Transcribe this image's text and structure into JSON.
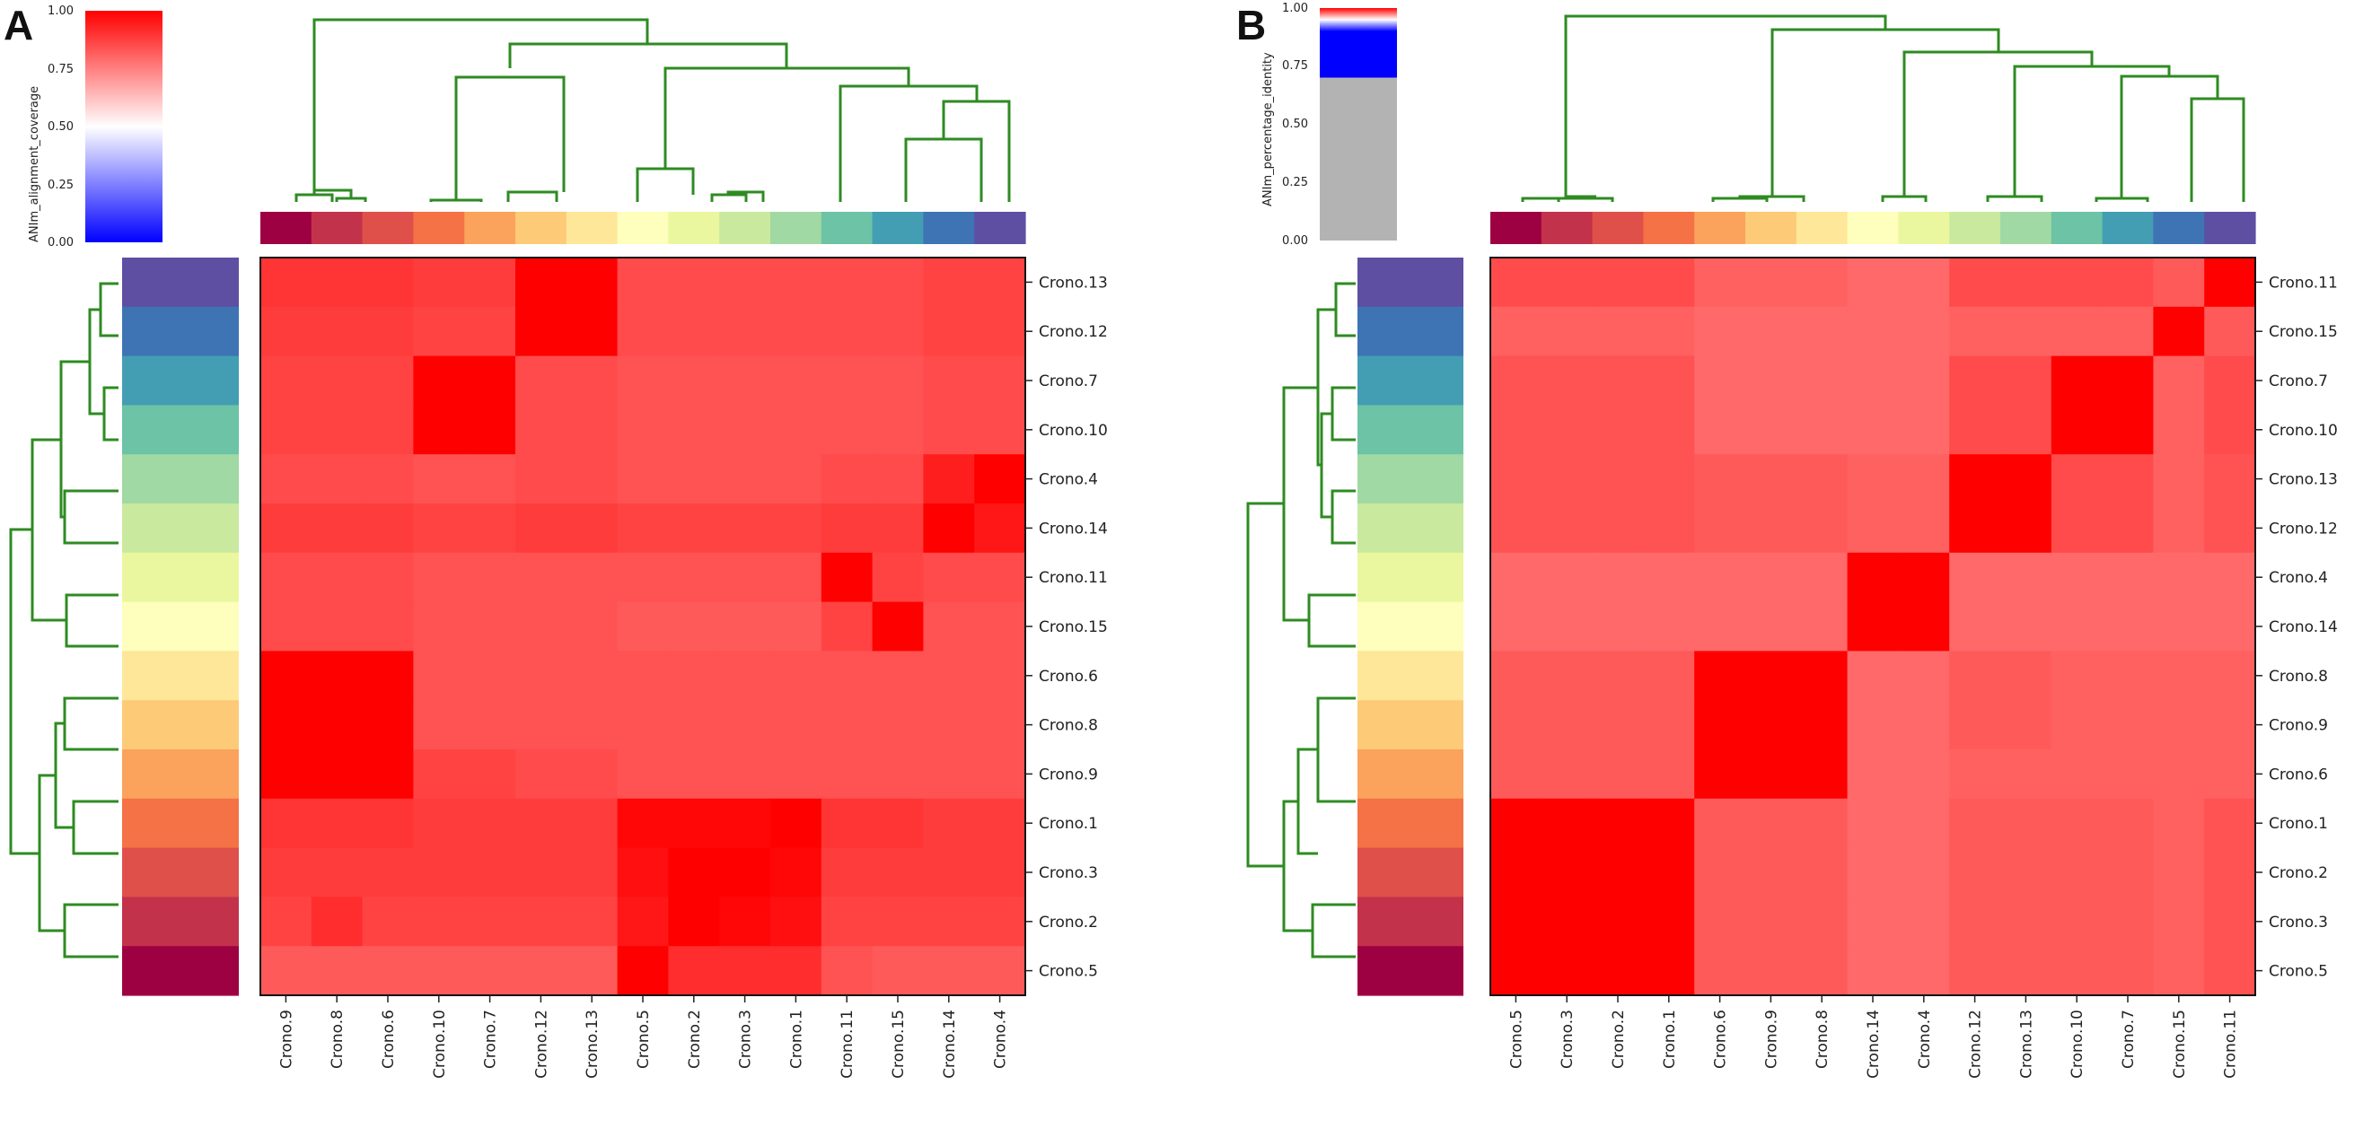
{
  "colors": {
    "dendrogram": "#2e8b22",
    "palette": [
      "#9e0142",
      "#c3324b",
      "#e0504a",
      "#f47245",
      "#fba25c",
      "#fdca77",
      "#fee798",
      "#fefebd",
      "#eaf79e",
      "#c9e99e",
      "#a0d9a3",
      "#6cc3a5",
      "#439eb3",
      "#3e74b3",
      "#5e4fa2"
    ]
  },
  "chart_data": [
    {
      "type": "heatmap",
      "panel": "A",
      "metric": "ANIm_alignment_coverage",
      "colorbar": {
        "label": "ANIm_alignment_coverage",
        "ticks": [
          "0.00",
          "0.25",
          "0.50",
          "0.75",
          "1.00"
        ],
        "range": [
          0,
          1
        ]
      },
      "col_labels": [
        "Crono.9",
        "Crono.8",
        "Crono.6",
        "Crono.10",
        "Crono.7",
        "Crono.12",
        "Crono.13",
        "Crono.5",
        "Crono.2",
        "Crono.3",
        "Crono.1",
        "Crono.11",
        "Crono.15",
        "Crono.14",
        "Crono.4"
      ],
      "row_labels": [
        "Crono.13",
        "Crono.12",
        "Crono.7",
        "Crono.10",
        "Crono.4",
        "Crono.14",
        "Crono.11",
        "Crono.15",
        "Crono.6",
        "Crono.8",
        "Crono.9",
        "Crono.1",
        "Crono.3",
        "Crono.2",
        "Crono.5"
      ],
      "values": [
        [
          0.93,
          0.93,
          0.93,
          0.92,
          0.92,
          1.0,
          1.0,
          0.9,
          0.9,
          0.9,
          0.9,
          0.9,
          0.9,
          0.91,
          0.91
        ],
        [
          0.92,
          0.92,
          0.92,
          0.91,
          0.91,
          1.0,
          1.0,
          0.9,
          0.9,
          0.9,
          0.9,
          0.9,
          0.9,
          0.91,
          0.91
        ],
        [
          0.91,
          0.91,
          0.91,
          1.0,
          1.0,
          0.9,
          0.9,
          0.89,
          0.89,
          0.89,
          0.89,
          0.89,
          0.89,
          0.9,
          0.9
        ],
        [
          0.91,
          0.91,
          0.91,
          1.0,
          1.0,
          0.9,
          0.9,
          0.89,
          0.89,
          0.89,
          0.89,
          0.89,
          0.89,
          0.9,
          0.9
        ],
        [
          0.9,
          0.9,
          0.9,
          0.89,
          0.89,
          0.9,
          0.9,
          0.89,
          0.89,
          0.89,
          0.89,
          0.9,
          0.9,
          0.96,
          1.0
        ],
        [
          0.92,
          0.92,
          0.92,
          0.91,
          0.91,
          0.92,
          0.92,
          0.91,
          0.91,
          0.91,
          0.91,
          0.92,
          0.92,
          1.0,
          0.97
        ],
        [
          0.9,
          0.9,
          0.9,
          0.89,
          0.89,
          0.89,
          0.89,
          0.89,
          0.89,
          0.89,
          0.89,
          1.0,
          0.91,
          0.9,
          0.9
        ],
        [
          0.9,
          0.9,
          0.9,
          0.89,
          0.89,
          0.89,
          0.89,
          0.88,
          0.88,
          0.88,
          0.88,
          0.91,
          1.0,
          0.89,
          0.89
        ],
        [
          1.0,
          1.0,
          1.0,
          0.89,
          0.89,
          0.89,
          0.89,
          0.89,
          0.89,
          0.89,
          0.89,
          0.89,
          0.89,
          0.89,
          0.89
        ],
        [
          1.0,
          1.0,
          1.0,
          0.89,
          0.89,
          0.89,
          0.89,
          0.89,
          0.89,
          0.89,
          0.89,
          0.89,
          0.89,
          0.89,
          0.89
        ],
        [
          1.0,
          1.0,
          1.0,
          0.91,
          0.91,
          0.9,
          0.9,
          0.89,
          0.89,
          0.89,
          0.89,
          0.89,
          0.89,
          0.89,
          0.89
        ],
        [
          0.93,
          0.93,
          0.93,
          0.92,
          0.92,
          0.92,
          0.92,
          0.99,
          0.99,
          0.99,
          1.0,
          0.93,
          0.93,
          0.92,
          0.92
        ],
        [
          0.92,
          0.92,
          0.92,
          0.92,
          0.92,
          0.92,
          0.92,
          0.98,
          1.0,
          1.0,
          0.99,
          0.92,
          0.92,
          0.92,
          0.92
        ],
        [
          0.91,
          0.94,
          0.91,
          0.91,
          0.91,
          0.91,
          0.91,
          0.97,
          1.0,
          0.99,
          0.98,
          0.91,
          0.91,
          0.91,
          0.91
        ],
        [
          0.88,
          0.88,
          0.88,
          0.88,
          0.88,
          0.88,
          0.88,
          1.0,
          0.94,
          0.94,
          0.94,
          0.89,
          0.88,
          0.88,
          0.88
        ]
      ]
    },
    {
      "type": "heatmap",
      "panel": "B",
      "metric": "ANIm_percentage_identity",
      "colorbar": {
        "label": "ANIm_percentage_identity",
        "ticks": [
          "0.00",
          "0.25",
          "0.50",
          "0.75",
          "1.00"
        ],
        "range": [
          0,
          1
        ]
      },
      "col_labels": [
        "Crono.5",
        "Crono.3",
        "Crono.2",
        "Crono.1",
        "Crono.6",
        "Crono.9",
        "Crono.8",
        "Crono.14",
        "Crono.4",
        "Crono.12",
        "Crono.13",
        "Crono.10",
        "Crono.7",
        "Crono.15",
        "Crono.11"
      ],
      "row_labels": [
        "Crono.11",
        "Crono.15",
        "Crono.7",
        "Crono.10",
        "Crono.13",
        "Crono.12",
        "Crono.4",
        "Crono.14",
        "Crono.8",
        "Crono.9",
        "Crono.6",
        "Crono.1",
        "Crono.2",
        "Crono.3",
        "Crono.5"
      ],
      "values": [
        [
          0.9,
          0.9,
          0.9,
          0.9,
          0.87,
          0.87,
          0.87,
          0.86,
          0.86,
          0.9,
          0.9,
          0.9,
          0.9,
          0.88,
          1.0
        ],
        [
          0.87,
          0.87,
          0.87,
          0.87,
          0.86,
          0.86,
          0.86,
          0.86,
          0.86,
          0.87,
          0.87,
          0.87,
          0.87,
          1.0,
          0.88
        ],
        [
          0.89,
          0.89,
          0.89,
          0.89,
          0.86,
          0.86,
          0.86,
          0.86,
          0.86,
          0.9,
          0.9,
          1.0,
          1.0,
          0.87,
          0.9
        ],
        [
          0.89,
          0.89,
          0.89,
          0.89,
          0.86,
          0.86,
          0.86,
          0.86,
          0.86,
          0.9,
          0.9,
          1.0,
          1.0,
          0.87,
          0.9
        ],
        [
          0.89,
          0.89,
          0.89,
          0.89,
          0.88,
          0.88,
          0.88,
          0.87,
          0.87,
          1.0,
          1.0,
          0.9,
          0.9,
          0.87,
          0.89
        ],
        [
          0.89,
          0.89,
          0.89,
          0.89,
          0.88,
          0.88,
          0.88,
          0.87,
          0.87,
          1.0,
          1.0,
          0.9,
          0.9,
          0.87,
          0.89
        ],
        [
          0.86,
          0.86,
          0.86,
          0.86,
          0.86,
          0.86,
          0.86,
          1.0,
          1.0,
          0.86,
          0.86,
          0.86,
          0.86,
          0.86,
          0.86
        ],
        [
          0.86,
          0.86,
          0.86,
          0.86,
          0.86,
          0.86,
          0.86,
          1.0,
          1.0,
          0.86,
          0.86,
          0.86,
          0.86,
          0.86,
          0.86
        ],
        [
          0.88,
          0.88,
          0.88,
          0.88,
          1.0,
          1.0,
          1.0,
          0.86,
          0.86,
          0.88,
          0.88,
          0.87,
          0.87,
          0.87,
          0.87
        ],
        [
          0.88,
          0.88,
          0.88,
          0.88,
          1.0,
          1.0,
          1.0,
          0.86,
          0.86,
          0.88,
          0.88,
          0.87,
          0.87,
          0.87,
          0.87
        ],
        [
          0.88,
          0.88,
          0.88,
          0.88,
          1.0,
          1.0,
          1.0,
          0.86,
          0.86,
          0.87,
          0.87,
          0.87,
          0.87,
          0.87,
          0.87
        ],
        [
          1.0,
          1.0,
          1.0,
          1.0,
          0.88,
          0.88,
          0.88,
          0.86,
          0.86,
          0.88,
          0.88,
          0.88,
          0.88,
          0.87,
          0.89
        ],
        [
          1.0,
          1.0,
          1.0,
          1.0,
          0.88,
          0.88,
          0.88,
          0.86,
          0.86,
          0.88,
          0.88,
          0.88,
          0.88,
          0.87,
          0.89
        ],
        [
          1.0,
          1.0,
          1.0,
          1.0,
          0.88,
          0.88,
          0.88,
          0.86,
          0.86,
          0.88,
          0.88,
          0.88,
          0.88,
          0.87,
          0.89
        ],
        [
          1.0,
          1.0,
          1.0,
          1.0,
          0.88,
          0.88,
          0.88,
          0.86,
          0.86,
          0.88,
          0.88,
          0.88,
          0.88,
          0.87,
          0.89
        ]
      ]
    }
  ]
}
